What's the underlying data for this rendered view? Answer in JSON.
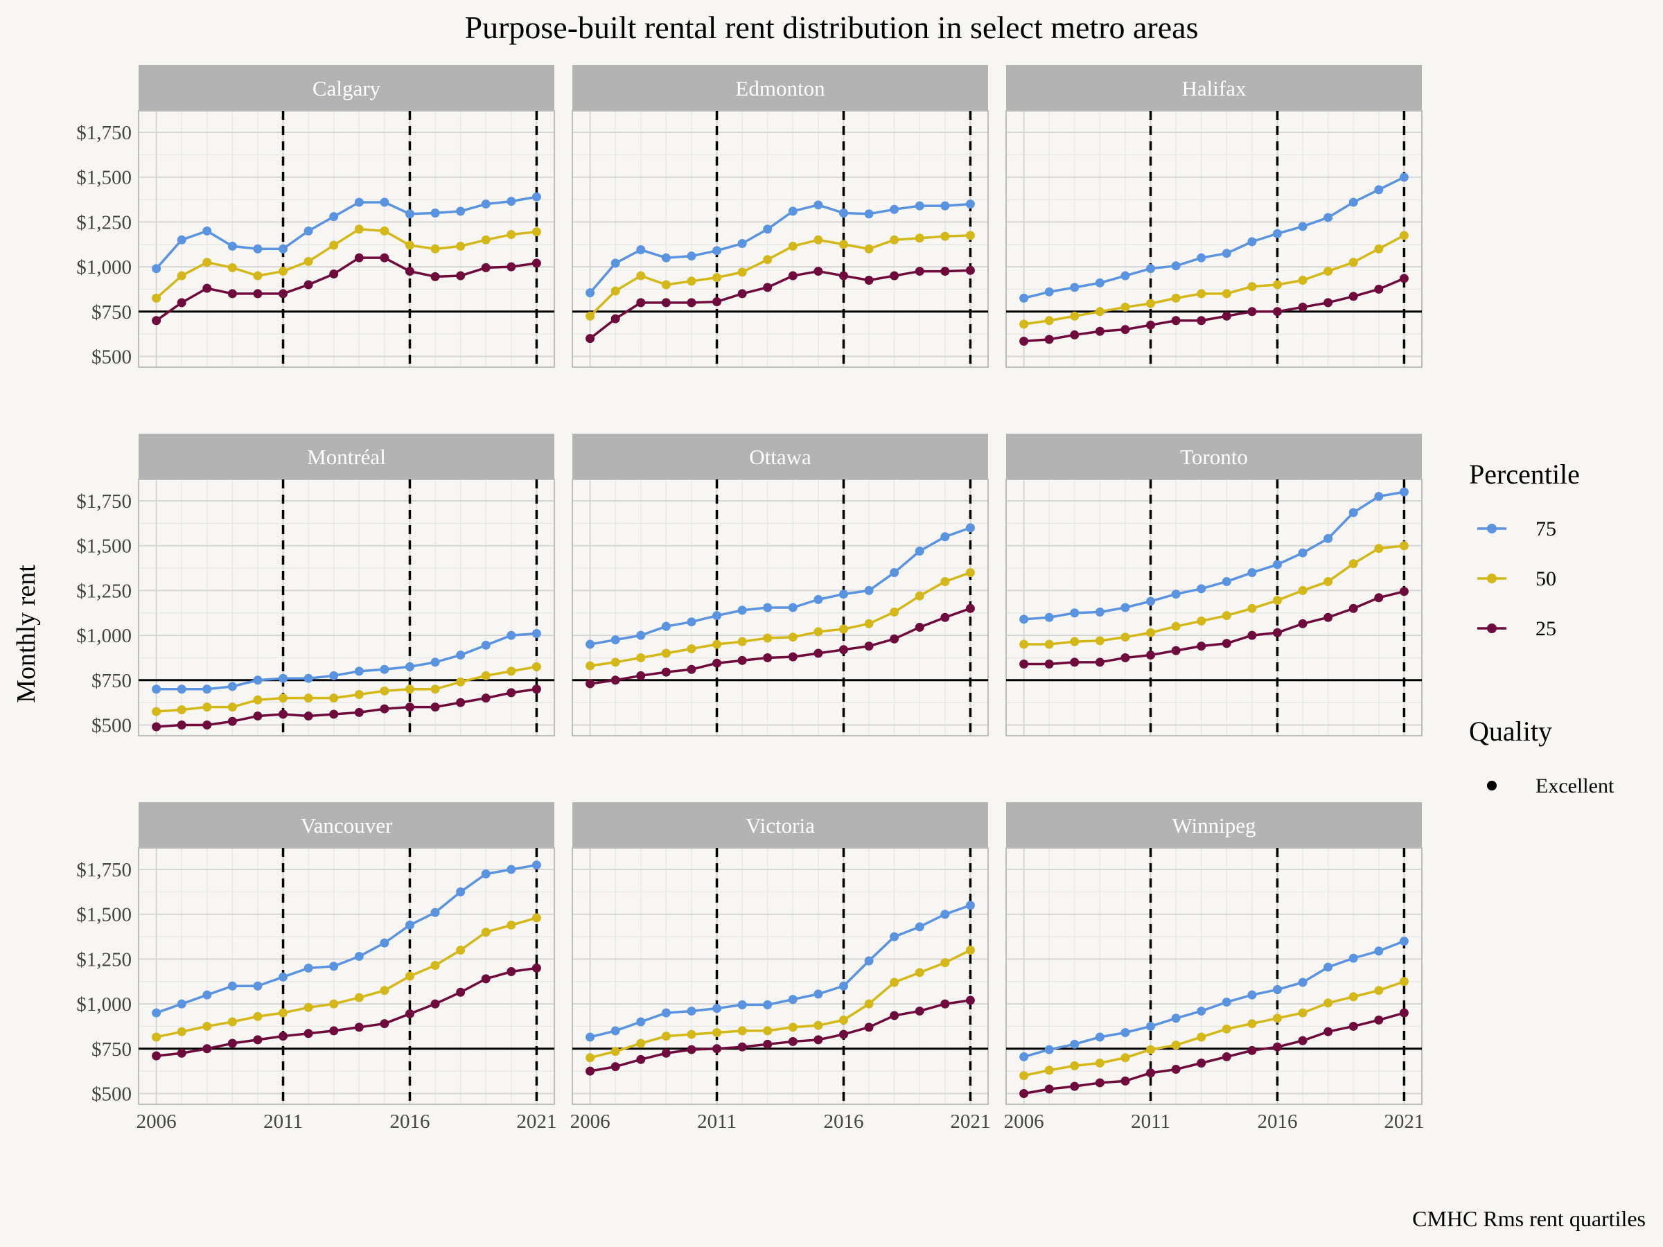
{
  "chart_data": {
    "type": "line",
    "title": "Purpose-built rental rent distribution in select metro areas",
    "ylabel": "Monthly rent",
    "xlabel": "",
    "caption": "CMHC Rms rent quartiles",
    "x": [
      2006,
      2007,
      2008,
      2009,
      2010,
      2011,
      2012,
      2013,
      2014,
      2015,
      2016,
      2017,
      2018,
      2019,
      2020,
      2021
    ],
    "x_ticks": [
      "2006",
      "2011",
      "2016",
      "2021"
    ],
    "y_ticks": [
      "$500",
      "$750",
      "$1,000",
      "$1,250",
      "$1,500",
      "$1,750"
    ],
    "y_tick_values": [
      500,
      750,
      1000,
      1250,
      1500,
      1750
    ],
    "ylim": [
      440,
      1870
    ],
    "xlim": [
      2005.3,
      2021.7
    ],
    "vlines": [
      2011,
      2016,
      2021
    ],
    "hline": 750,
    "grid": true,
    "legend": {
      "position": "right",
      "percentile_title": "Percentile",
      "percentile_entries": [
        {
          "label": "75",
          "color": "#5a93e0"
        },
        {
          "label": "50",
          "color": "#d4b81a"
        },
        {
          "label": "25",
          "color": "#6e0a3c"
        }
      ],
      "quality_title": "Quality",
      "quality_entries": [
        {
          "label": "Excellent",
          "color": "#000000"
        }
      ]
    },
    "panels": [
      {
        "name": "Calgary",
        "series": [
          {
            "name": "75",
            "values": [
              990,
              1150,
              1200,
              1115,
              1100,
              1100,
              1200,
              1280,
              1360,
              1360,
              1295,
              1300,
              1310,
              1350,
              1365,
              1390
            ]
          },
          {
            "name": "50",
            "values": [
              825,
              950,
              1025,
              995,
              950,
              975,
              1030,
              1120,
              1210,
              1200,
              1120,
              1100,
              1115,
              1150,
              1180,
              1195
            ]
          },
          {
            "name": "25",
            "values": [
              700,
              800,
              880,
              850,
              850,
              850,
              900,
              960,
              1050,
              1050,
              975,
              945,
              950,
              995,
              1000,
              1020
            ]
          }
        ]
      },
      {
        "name": "Edmonton",
        "series": [
          {
            "name": "75",
            "values": [
              855,
              1020,
              1095,
              1050,
              1060,
              1090,
              1130,
              1210,
              1310,
              1345,
              1300,
              1295,
              1320,
              1340,
              1340,
              1350
            ]
          },
          {
            "name": "50",
            "values": [
              725,
              865,
              950,
              900,
              920,
              940,
              970,
              1040,
              1115,
              1150,
              1125,
              1100,
              1150,
              1160,
              1170,
              1175
            ]
          },
          {
            "name": "25",
            "values": [
              600,
              710,
              800,
              800,
              800,
              805,
              850,
              885,
              950,
              975,
              950,
              925,
              950,
              975,
              975,
              980
            ]
          }
        ]
      },
      {
        "name": "Halifax",
        "series": [
          {
            "name": "75",
            "values": [
              825,
              860,
              885,
              910,
              950,
              990,
              1005,
              1050,
              1075,
              1140,
              1185,
              1225,
              1275,
              1360,
              1430,
              1500
            ]
          },
          {
            "name": "50",
            "values": [
              680,
              700,
              725,
              750,
              775,
              795,
              825,
              850,
              850,
              890,
              900,
              925,
              975,
              1025,
              1100,
              1175
            ]
          },
          {
            "name": "25",
            "values": [
              585,
              595,
              620,
              640,
              650,
              675,
              700,
              700,
              725,
              750,
              750,
              775,
              800,
              835,
              875,
              935
            ]
          }
        ]
      },
      {
        "name": "Montréal",
        "series": [
          {
            "name": "75",
            "values": [
              700,
              700,
              700,
              715,
              750,
              760,
              760,
              775,
              800,
              810,
              825,
              850,
              890,
              945,
              1000,
              1010
            ]
          },
          {
            "name": "50",
            "values": [
              575,
              585,
              600,
              600,
              640,
              650,
              650,
              650,
              670,
              690,
              700,
              700,
              740,
              775,
              800,
              825
            ]
          },
          {
            "name": "25",
            "values": [
              490,
              500,
              500,
              520,
              550,
              560,
              550,
              560,
              570,
              590,
              600,
              600,
              625,
              650,
              680,
              700
            ]
          }
        ]
      },
      {
        "name": "Ottawa",
        "series": [
          {
            "name": "75",
            "values": [
              950,
              975,
              1000,
              1050,
              1075,
              1110,
              1140,
              1155,
              1155,
              1200,
              1230,
              1250,
              1350,
              1470,
              1550,
              1600
            ]
          },
          {
            "name": "50",
            "values": [
              830,
              850,
              875,
              900,
              925,
              950,
              965,
              985,
              990,
              1020,
              1035,
              1065,
              1130,
              1220,
              1300,
              1350
            ]
          },
          {
            "name": "25",
            "values": [
              730,
              750,
              775,
              795,
              810,
              845,
              860,
              875,
              880,
              900,
              920,
              940,
              980,
              1045,
              1100,
              1150
            ]
          }
        ]
      },
      {
        "name": "Toronto",
        "series": [
          {
            "name": "75",
            "values": [
              1090,
              1100,
              1125,
              1130,
              1155,
              1190,
              1230,
              1260,
              1300,
              1350,
              1395,
              1460,
              1540,
              1685,
              1775,
              1800
            ]
          },
          {
            "name": "50",
            "values": [
              950,
              950,
              965,
              970,
              990,
              1015,
              1050,
              1080,
              1110,
              1150,
              1195,
              1250,
              1300,
              1400,
              1485,
              1500
            ]
          },
          {
            "name": "25",
            "values": [
              840,
              840,
              850,
              850,
              875,
              890,
              915,
              940,
              955,
              1000,
              1015,
              1065,
              1100,
              1150,
              1210,
              1245
            ]
          }
        ]
      },
      {
        "name": "Vancouver",
        "series": [
          {
            "name": "75",
            "values": [
              950,
              1000,
              1050,
              1100,
              1100,
              1150,
              1200,
              1210,
              1265,
              1340,
              1440,
              1510,
              1625,
              1725,
              1750,
              1775
            ]
          },
          {
            "name": "50",
            "values": [
              815,
              845,
              875,
              900,
              930,
              950,
              980,
              1000,
              1035,
              1075,
              1155,
              1215,
              1300,
              1400,
              1440,
              1480
            ]
          },
          {
            "name": "25",
            "values": [
              710,
              725,
              750,
              780,
              800,
              820,
              835,
              850,
              870,
              890,
              945,
              1000,
              1065,
              1140,
              1180,
              1200
            ]
          }
        ]
      },
      {
        "name": "Victoria",
        "series": [
          {
            "name": "75",
            "values": [
              815,
              850,
              900,
              950,
              960,
              975,
              995,
              995,
              1025,
              1055,
              1100,
              1240,
              1375,
              1430,
              1500,
              1550
            ]
          },
          {
            "name": "50",
            "values": [
              700,
              735,
              780,
              820,
              830,
              840,
              850,
              850,
              870,
              880,
              910,
              1000,
              1120,
              1175,
              1230,
              1300
            ]
          },
          {
            "name": "25",
            "values": [
              625,
              650,
              690,
              725,
              745,
              750,
              760,
              775,
              790,
              800,
              830,
              870,
              935,
              960,
              1000,
              1020
            ]
          }
        ]
      },
      {
        "name": "Winnipeg",
        "series": [
          {
            "name": "75",
            "values": [
              705,
              745,
              775,
              815,
              840,
              875,
              920,
              960,
              1010,
              1050,
              1080,
              1120,
              1205,
              1255,
              1295,
              1350
            ]
          },
          {
            "name": "50",
            "values": [
              600,
              630,
              655,
              670,
              700,
              745,
              770,
              815,
              860,
              890,
              920,
              950,
              1005,
              1040,
              1075,
              1125
            ]
          },
          {
            "name": "25",
            "values": [
              500,
              525,
              540,
              560,
              570,
              615,
              635,
              670,
              705,
              740,
              760,
              795,
              845,
              875,
              910,
              950
            ]
          }
        ]
      }
    ]
  },
  "colors": {
    "background": "#f8f6f2",
    "strip": "#b3b3b3",
    "grid_major": "#d6d6d6",
    "grid_minor": "#e9e9e9"
  }
}
